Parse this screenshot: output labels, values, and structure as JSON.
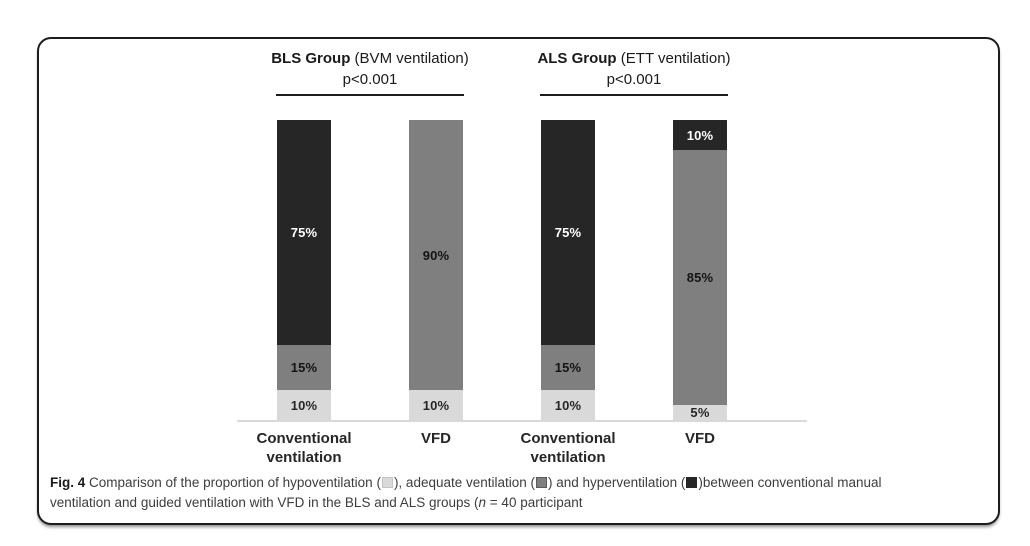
{
  "figure": {
    "caption": {
      "label": "Fig. 4",
      "part1": " Comparison of the proportion of hypoventilation (",
      "part2": "), adequate ventilation (",
      "part3": ") and hyperventilation (",
      "part4": ")between conventional manual",
      "part5": "ventilation and guided ventilation with VFD in the BLS and ALS groups (",
      "n_italic": "n",
      "part6": " = 40 participant"
    }
  },
  "chart_data": {
    "type": "stacked-bar",
    "unit": "%",
    "ylim": [
      0,
      100
    ],
    "grid": false,
    "legend_position": "in-caption",
    "series": [
      {
        "key": "hypoventilation",
        "name": "hypoventilation",
        "color": "#d9d9d9",
        "label_color": "#262626"
      },
      {
        "key": "adequate-ventilation",
        "name": "adequate ventilation",
        "color": "#7f7f7f",
        "label_color": "#141414"
      },
      {
        "key": "hyperventilation",
        "name": "hyperventilation",
        "color": "#262626",
        "label_color": "#ffffff"
      }
    ],
    "groups": [
      {
        "title_bold": "BLS Group",
        "title_rest": " (BVM ventilation)",
        "p_value": "p<0.001",
        "bars": [
          {
            "label_lines": [
              "Conventional",
              "ventilation"
            ],
            "values": [
              10,
              15,
              75
            ]
          },
          {
            "label_lines": [
              "VFD"
            ],
            "values": [
              10,
              90,
              0
            ]
          }
        ]
      },
      {
        "title_bold": "ALS Group",
        "title_rest": " (ETT ventilation)",
        "p_value": "p<0.001",
        "bars": [
          {
            "label_lines": [
              "Conventional",
              "ventilation"
            ],
            "values": [
              10,
              15,
              75
            ]
          },
          {
            "label_lines": [
              "VFD"
            ],
            "values": [
              5,
              85,
              10
            ]
          }
        ]
      }
    ]
  }
}
